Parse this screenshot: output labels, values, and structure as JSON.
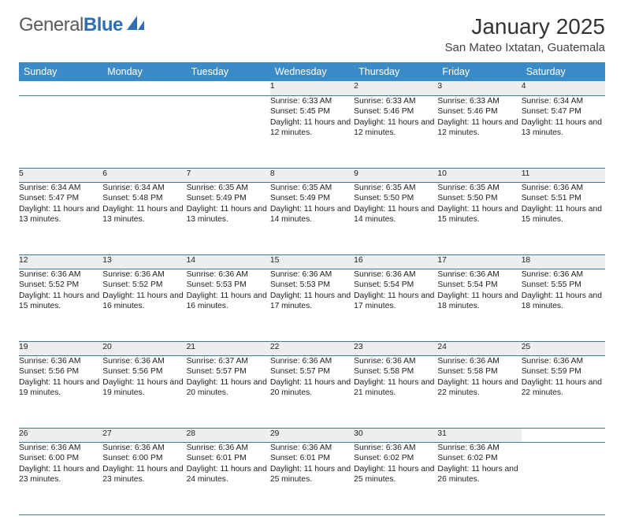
{
  "brand": {
    "text1": "General",
    "text2": "Blue"
  },
  "title": "January 2025",
  "location": "San Mateo Ixtatan, Guatemala",
  "colors": {
    "header_bg": "#3b8bc9",
    "daynum_bg": "#eceef0",
    "row_border": "#3b78a8",
    "brand_gray": "#5a5a5a",
    "brand_blue": "#2f6fb0"
  },
  "weekdays": [
    "Sunday",
    "Monday",
    "Tuesday",
    "Wednesday",
    "Thursday",
    "Friday",
    "Saturday"
  ],
  "firstDayIndex": 3,
  "daysInMonth": 31,
  "days": {
    "1": {
      "sunrise": "6:33 AM",
      "sunset": "5:45 PM",
      "daylight": "11 hours and 12 minutes."
    },
    "2": {
      "sunrise": "6:33 AM",
      "sunset": "5:46 PM",
      "daylight": "11 hours and 12 minutes."
    },
    "3": {
      "sunrise": "6:33 AM",
      "sunset": "5:46 PM",
      "daylight": "11 hours and 12 minutes."
    },
    "4": {
      "sunrise": "6:34 AM",
      "sunset": "5:47 PM",
      "daylight": "11 hours and 13 minutes."
    },
    "5": {
      "sunrise": "6:34 AM",
      "sunset": "5:47 PM",
      "daylight": "11 hours and 13 minutes."
    },
    "6": {
      "sunrise": "6:34 AM",
      "sunset": "5:48 PM",
      "daylight": "11 hours and 13 minutes."
    },
    "7": {
      "sunrise": "6:35 AM",
      "sunset": "5:49 PM",
      "daylight": "11 hours and 13 minutes."
    },
    "8": {
      "sunrise": "6:35 AM",
      "sunset": "5:49 PM",
      "daylight": "11 hours and 14 minutes."
    },
    "9": {
      "sunrise": "6:35 AM",
      "sunset": "5:50 PM",
      "daylight": "11 hours and 14 minutes."
    },
    "10": {
      "sunrise": "6:35 AM",
      "sunset": "5:50 PM",
      "daylight": "11 hours and 15 minutes."
    },
    "11": {
      "sunrise": "6:36 AM",
      "sunset": "5:51 PM",
      "daylight": "11 hours and 15 minutes."
    },
    "12": {
      "sunrise": "6:36 AM",
      "sunset": "5:52 PM",
      "daylight": "11 hours and 15 minutes."
    },
    "13": {
      "sunrise": "6:36 AM",
      "sunset": "5:52 PM",
      "daylight": "11 hours and 16 minutes."
    },
    "14": {
      "sunrise": "6:36 AM",
      "sunset": "5:53 PM",
      "daylight": "11 hours and 16 minutes."
    },
    "15": {
      "sunrise": "6:36 AM",
      "sunset": "5:53 PM",
      "daylight": "11 hours and 17 minutes."
    },
    "16": {
      "sunrise": "6:36 AM",
      "sunset": "5:54 PM",
      "daylight": "11 hours and 17 minutes."
    },
    "17": {
      "sunrise": "6:36 AM",
      "sunset": "5:54 PM",
      "daylight": "11 hours and 18 minutes."
    },
    "18": {
      "sunrise": "6:36 AM",
      "sunset": "5:55 PM",
      "daylight": "11 hours and 18 minutes."
    },
    "19": {
      "sunrise": "6:36 AM",
      "sunset": "5:56 PM",
      "daylight": "11 hours and 19 minutes."
    },
    "20": {
      "sunrise": "6:36 AM",
      "sunset": "5:56 PM",
      "daylight": "11 hours and 19 minutes."
    },
    "21": {
      "sunrise": "6:37 AM",
      "sunset": "5:57 PM",
      "daylight": "11 hours and 20 minutes."
    },
    "22": {
      "sunrise": "6:36 AM",
      "sunset": "5:57 PM",
      "daylight": "11 hours and 20 minutes."
    },
    "23": {
      "sunrise": "6:36 AM",
      "sunset": "5:58 PM",
      "daylight": "11 hours and 21 minutes."
    },
    "24": {
      "sunrise": "6:36 AM",
      "sunset": "5:58 PM",
      "daylight": "11 hours and 22 minutes."
    },
    "25": {
      "sunrise": "6:36 AM",
      "sunset": "5:59 PM",
      "daylight": "11 hours and 22 minutes."
    },
    "26": {
      "sunrise": "6:36 AM",
      "sunset": "6:00 PM",
      "daylight": "11 hours and 23 minutes."
    },
    "27": {
      "sunrise": "6:36 AM",
      "sunset": "6:00 PM",
      "daylight": "11 hours and 23 minutes."
    },
    "28": {
      "sunrise": "6:36 AM",
      "sunset": "6:01 PM",
      "daylight": "11 hours and 24 minutes."
    },
    "29": {
      "sunrise": "6:36 AM",
      "sunset": "6:01 PM",
      "daylight": "11 hours and 25 minutes."
    },
    "30": {
      "sunrise": "6:36 AM",
      "sunset": "6:02 PM",
      "daylight": "11 hours and 25 minutes."
    },
    "31": {
      "sunrise": "6:36 AM",
      "sunset": "6:02 PM",
      "daylight": "11 hours and 26 minutes."
    }
  },
  "labels": {
    "sunrise": "Sunrise: ",
    "sunset": "Sunset: ",
    "daylight": "Daylight: "
  }
}
